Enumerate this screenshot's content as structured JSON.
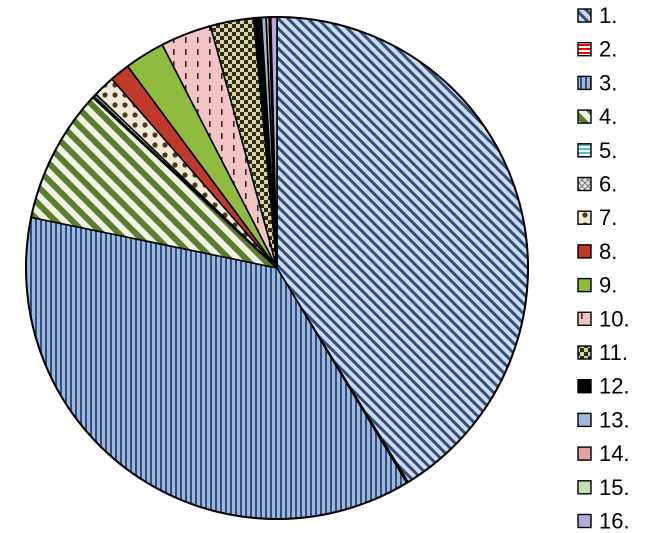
{
  "chart_data": {
    "type": "pie",
    "title": "",
    "legend_position": "right",
    "categories": [
      "1.",
      "2.",
      "3.",
      "4.",
      "5.",
      "6.",
      "7.",
      "8.",
      "9.",
      "10.",
      "11.",
      "12.",
      "13.",
      "14.",
      "15.",
      "16."
    ],
    "values": [
      41.5,
      0.1,
      37.1,
      8.7,
      0.1,
      0.2,
      1.4,
      1.3,
      2.6,
      3.3,
      2.8,
      0.5,
      0.3,
      0.2,
      0.1,
      0.4
    ],
    "colors": [
      "#9fb7dd",
      "#ff0000",
      "#9fb7dd",
      "#6b8e3a",
      "#a8d8e8",
      "#d9d9d9",
      "#d9c39a",
      "#c0392b",
      "#8fbc3f",
      "#f2b8b8",
      "#6b6b3a",
      "#000000",
      "#9fb7dd",
      "#e0a0a0",
      "#c8e0b0",
      "#b0a8d8"
    ],
    "patterns": [
      "diagonal-stripes",
      "horizontal-stripes",
      "vertical-stripes",
      "diagonal-stripes",
      "horizontal-stripes",
      "crosshatch",
      "dots",
      "solid",
      "solid",
      "dashes",
      "checker",
      "solid",
      "solid",
      "solid",
      "solid",
      "solid"
    ]
  }
}
